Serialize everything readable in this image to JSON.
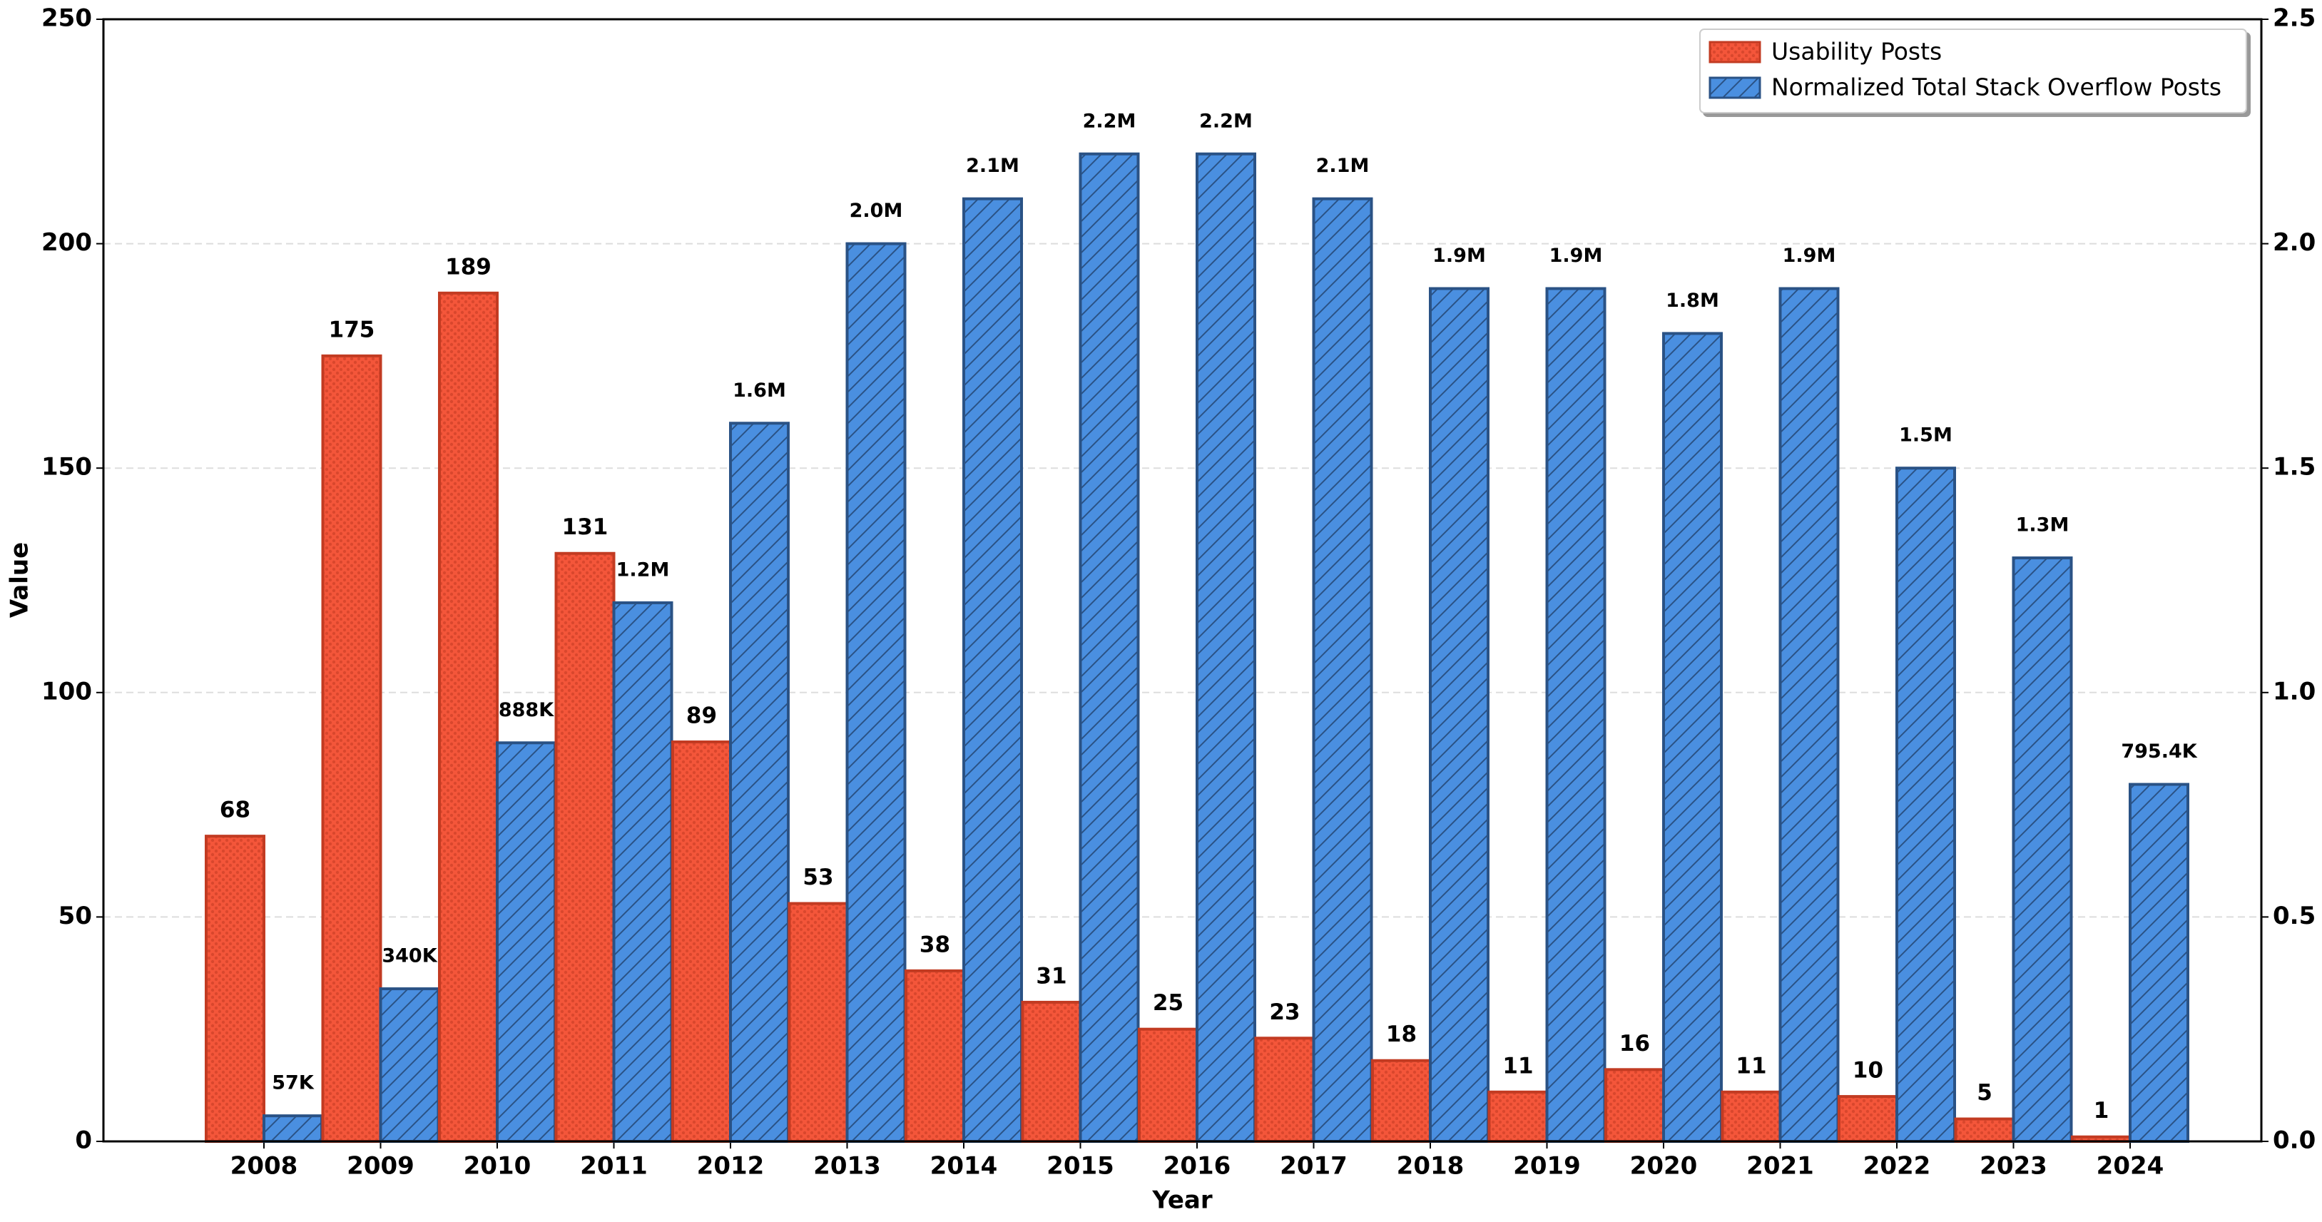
{
  "chart_data": {
    "type": "bar",
    "xlabel": "Year",
    "ylabel": "Value",
    "categories": [
      "2008",
      "2009",
      "2010",
      "2011",
      "2012",
      "2013",
      "2014",
      "2015",
      "2016",
      "2017",
      "2018",
      "2019",
      "2020",
      "2021",
      "2022",
      "2023",
      "2024"
    ],
    "series": [
      {
        "name": "Usability Posts",
        "color": "#f4563a",
        "edgecolor": "#c23b22",
        "hatch": "dots",
        "values": [
          68,
          175,
          189,
          131,
          89,
          53,
          38,
          31,
          25,
          23,
          18,
          11,
          16,
          11,
          10,
          5,
          1
        ]
      },
      {
        "name": "Normalized Total Stack Overflow Posts",
        "color": "#4a8fe0",
        "edgecolor": "#2a5285",
        "hatch": "diagonal",
        "axis": "y2",
        "values": [
          0.057,
          0.34,
          0.888,
          1.2,
          1.6,
          2.0,
          2.1,
          2.2,
          2.2,
          2.1,
          1.9,
          1.9,
          1.8,
          1.9,
          1.5,
          1.3,
          0.7954
        ],
        "value_labels": [
          "57K",
          "340K",
          "888K",
          "1.2M",
          "1.6M",
          "2.0M",
          "2.1M",
          "2.2M",
          "2.2M",
          "2.1M",
          "1.9M",
          "1.9M",
          "1.8M",
          "1.9M",
          "1.5M",
          "1.3M",
          "795.4K"
        ]
      }
    ],
    "ylim": [
      0,
      250
    ],
    "yticks": [
      0,
      50,
      100,
      150,
      200,
      250
    ],
    "y2lim": [
      0,
      2.5
    ],
    "y2ticks": [
      {
        "value": 0,
        "label": "0.0"
      },
      0.5,
      {
        "value": 1,
        "label": "1.0"
      },
      1.5,
      {
        "value": 2,
        "label": "2.0"
      },
      2.5
    ],
    "grid": true,
    "legend": "upper right"
  }
}
